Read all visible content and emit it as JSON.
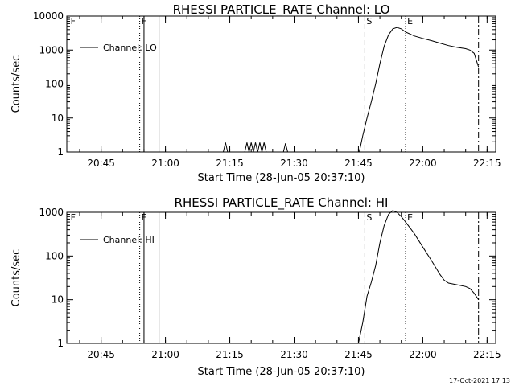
{
  "footer": "17-Oct-2021 17:13",
  "chart_data": [
    {
      "type": "line",
      "title": "RHESSI PARTICLE_RATE Channel: LO",
      "xlabel": "Start Time (28-Jun-05 20:37:10)",
      "ylabel": "Counts/sec",
      "yscale": "log",
      "ylim": [
        1,
        10000
      ],
      "xlim": [
        "20:37",
        "22:17"
      ],
      "yticks": [
        1,
        10,
        100,
        1000,
        10000
      ],
      "yticklabels": [
        "1",
        "10",
        "100",
        "1000",
        "10000"
      ],
      "xticks": [
        "20:45",
        "21:00",
        "21:15",
        "21:30",
        "21:45",
        "22:00",
        "22:15"
      ],
      "legend": {
        "label": "Channel: LO",
        "position": "top-left"
      },
      "markers": [
        {
          "label": "F",
          "time": "20:54",
          "style": "dotted"
        },
        {
          "label": "",
          "time": "20:55",
          "style": "solid"
        },
        {
          "label": "",
          "time": "20:58.5",
          "style": "solid"
        },
        {
          "label": "S",
          "time": "21:46.5",
          "style": "dashed"
        },
        {
          "label": "E",
          "time": "21:56",
          "style": "dotted"
        },
        {
          "label": "",
          "time": "22:13",
          "style": "dashdot"
        },
        {
          "label": "F",
          "time": "20:37.5",
          "style": "none"
        }
      ],
      "series": [
        {
          "name": "Channel: LO",
          "points": [
            [
              "21:13.5",
              1
            ],
            [
              "21:14",
              1.9
            ],
            [
              "21:14.5",
              1
            ],
            [
              "21:18.5",
              1
            ],
            [
              "21:19",
              1.9
            ],
            [
              "21:19.5",
              1
            ],
            [
              "21:20",
              1.9
            ],
            [
              "21:20.5",
              1
            ],
            [
              "21:21",
              1.9
            ],
            [
              "21:21.5",
              1
            ],
            [
              "21:22",
              1.9
            ],
            [
              "21:22.5",
              1
            ],
            [
              "21:23",
              1.9
            ],
            [
              "21:23.5",
              1
            ],
            [
              "21:27.5",
              1
            ],
            [
              "21:28",
              1.8
            ],
            [
              "21:28.5",
              1
            ],
            [
              "21:45.2",
              1
            ],
            [
              "21:46",
              3
            ],
            [
              "21:47",
              10
            ],
            [
              "21:48",
              30
            ],
            [
              "21:49",
              100
            ],
            [
              "21:50",
              400
            ],
            [
              "21:51",
              1300
            ],
            [
              "21:52",
              2800
            ],
            [
              "21:53",
              4200
            ],
            [
              "21:54",
              4600
            ],
            [
              "21:55",
              4200
            ],
            [
              "21:56",
              3400
            ],
            [
              "21:58",
              2600
            ],
            [
              "22:00",
              2200
            ],
            [
              "22:02",
              1900
            ],
            [
              "22:04",
              1600
            ],
            [
              "22:06",
              1350
            ],
            [
              "22:08",
              1200
            ],
            [
              "22:10",
              1100
            ],
            [
              "22:11",
              1000
            ],
            [
              "22:12",
              800
            ],
            [
              "22:12.5",
              500
            ],
            [
              "22:13",
              320
            ]
          ]
        }
      ]
    },
    {
      "type": "line",
      "title": "RHESSI PARTICLE_RATE Channel: HI",
      "xlabel": "Start Time (28-Jun-05 20:37:10)",
      "ylabel": "Counts/sec",
      "yscale": "log",
      "ylim": [
        1,
        1000
      ],
      "xlim": [
        "20:37",
        "22:17"
      ],
      "yticks": [
        1,
        10,
        100,
        1000
      ],
      "yticklabels": [
        "1",
        "10",
        "100",
        "1000"
      ],
      "xticks": [
        "20:45",
        "21:00",
        "21:15",
        "21:30",
        "21:45",
        "22:00",
        "22:15"
      ],
      "legend": {
        "label": "Channel: HI",
        "position": "top-left"
      },
      "markers": [
        {
          "label": "F",
          "time": "20:54",
          "style": "dotted"
        },
        {
          "label": "",
          "time": "20:55",
          "style": "solid"
        },
        {
          "label": "",
          "time": "20:58.5",
          "style": "solid"
        },
        {
          "label": "S",
          "time": "21:46.5",
          "style": "dashed"
        },
        {
          "label": "E",
          "time": "21:56",
          "style": "dotted"
        },
        {
          "label": "",
          "time": "22:13",
          "style": "dashdot"
        },
        {
          "label": "F",
          "time": "20:37.5",
          "style": "none"
        }
      ],
      "series": [
        {
          "name": "Channel: HI",
          "points": [
            [
              "21:45",
              1
            ],
            [
              "21:46",
              3
            ],
            [
              "21:47",
              12
            ],
            [
              "21:48",
              25
            ],
            [
              "21:49",
              60
            ],
            [
              "21:50",
              200
            ],
            [
              "21:51",
              500
            ],
            [
              "21:52",
              900
            ],
            [
              "21:53",
              1100
            ],
            [
              "21:54",
              1000
            ],
            [
              "21:55",
              800
            ],
            [
              "21:56",
              600
            ],
            [
              "21:58",
              330
            ],
            [
              "22:00",
              160
            ],
            [
              "22:02",
              80
            ],
            [
              "22:04",
              38
            ],
            [
              "22:05",
              28
            ],
            [
              "22:06",
              24
            ],
            [
              "22:08",
              22
            ],
            [
              "22:10",
              20
            ],
            [
              "22:11",
              18
            ],
            [
              "22:12",
              14
            ],
            [
              "22:13",
              10
            ]
          ]
        }
      ]
    }
  ]
}
